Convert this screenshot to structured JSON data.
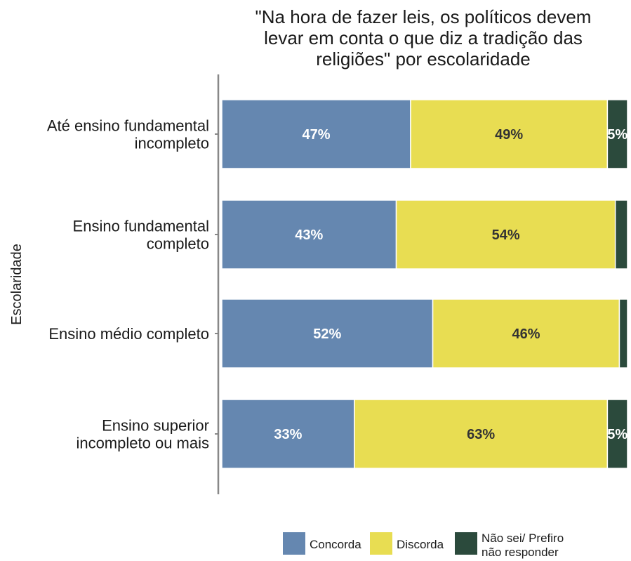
{
  "chart_data": {
    "type": "bar",
    "orientation": "horizontal",
    "stacked": true,
    "title_lines": [
      "\"Na hora de fazer leis, os políticos devem",
      "levar em conta o que diz a tradição das",
      "religiões\" por escolaridade"
    ],
    "ylabel": "Escolaridade",
    "xlabel": "",
    "categories": [
      [
        "Até ensino fundamental",
        "incompleto"
      ],
      [
        "Ensino fundamental",
        "completo"
      ],
      [
        "Ensino médio completo"
      ],
      [
        "Ensino superior",
        "incompleto ou mais"
      ]
    ],
    "series": [
      {
        "name": "Concorda",
        "color": "#6587b0",
        "label_color": "#ffffff",
        "values": [
          47,
          43,
          52,
          33
        ],
        "labels": [
          "47%",
          "43%",
          "52%",
          "33%"
        ]
      },
      {
        "name": "Discorda",
        "color": "#e8dd52",
        "label_color": "#333333",
        "values": [
          49,
          54,
          46,
          63
        ],
        "labels": [
          "49%",
          "54%",
          "46%",
          "63%"
        ]
      },
      {
        "name": "Não sei/ Prefiro não responder",
        "color": "#2b4a3c",
        "label_color": "#ffffff",
        "values": [
          5,
          3,
          2,
          5
        ],
        "labels": [
          "5%",
          "",
          "",
          "5%"
        ]
      }
    ],
    "legend": {
      "position": "bottom",
      "entries": [
        [
          "Concorda"
        ],
        [
          "Discorda"
        ],
        [
          "Não sei/ Prefiro",
          "não responder"
        ]
      ]
    },
    "grid": false
  }
}
